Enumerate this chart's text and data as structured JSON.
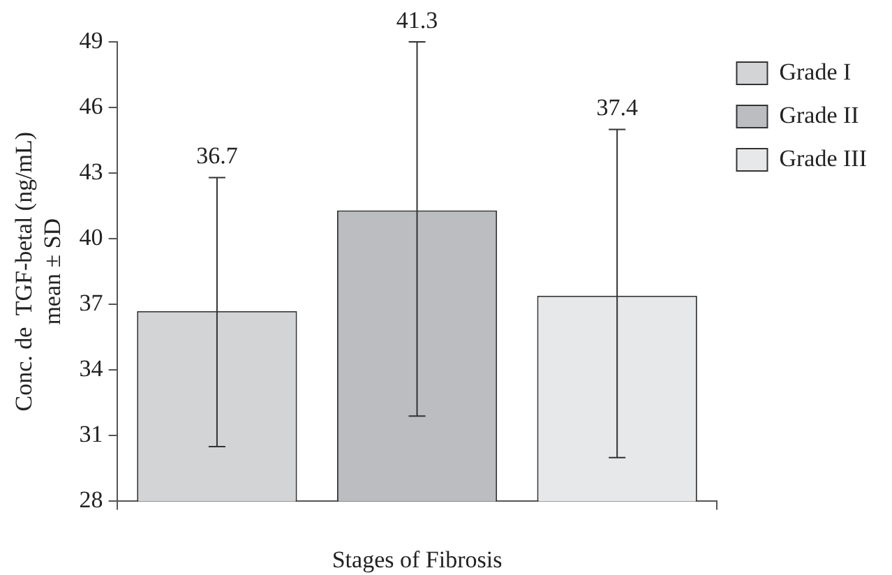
{
  "chart_data": {
    "type": "bar",
    "xlabel": "Stages of Fibrosis",
    "ylabel": "Conc. de  TGF-betal (ng/mL)\nmean ± SD",
    "categories": [
      null
    ],
    "series": [
      {
        "name": "Grade I",
        "color": "#d3d4d6",
        "values": [
          36.7
        ],
        "errors": [
          [
            30.5,
            42.8
          ]
        ]
      },
      {
        "name": "Grade II",
        "color": "#bcbdc0",
        "values": [
          41.3
        ],
        "errors": [
          [
            31.9,
            49
          ]
        ]
      },
      {
        "name": "Grade III",
        "color": "#e7e8e9",
        "values": [
          37.4
        ],
        "errors": [
          [
            30.0,
            45.0
          ]
        ]
      }
    ],
    "annotations": [
      {
        "text": "36.7",
        "y": 42.8
      },
      {
        "text": "41.3",
        "y": 49
      },
      {
        "text": "37.4",
        "y": 45.0
      }
    ],
    "ylim": [
      28,
      49
    ],
    "yticks": [
      28,
      31,
      34,
      37,
      40,
      43,
      46,
      49
    ],
    "grid": false,
    "legend": "right"
  }
}
